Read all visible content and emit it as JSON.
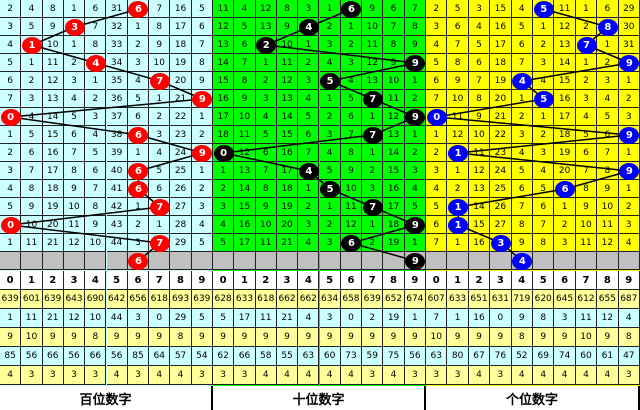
{
  "digits": [
    "0",
    "1",
    "2",
    "3",
    "4",
    "5",
    "6",
    "7",
    "8",
    "9"
  ],
  "panels": [
    {
      "title": "百位数字",
      "bg": "#ccffff",
      "ball_color": "#ff0000",
      "ball_text": "#ffffff",
      "draws": [
        6,
        3,
        1,
        4,
        7,
        9,
        0,
        6,
        9,
        6,
        6,
        7,
        0,
        7
      ],
      "next": 6,
      "rows": [
        [
          "2",
          "4",
          "8",
          "1",
          "6",
          "31",
          "6",
          "7",
          "16",
          "5"
        ],
        [
          "3",
          "5",
          "9",
          "3",
          "7",
          "32",
          "1",
          "8",
          "17",
          "6"
        ],
        [
          "4",
          "1",
          "10",
          "1",
          "8",
          "33",
          "2",
          "9",
          "18",
          "7"
        ],
        [
          "5",
          "1",
          "11",
          "2",
          "4",
          "34",
          "3",
          "10",
          "19",
          "8"
        ],
        [
          "6",
          "2",
          "12",
          "3",
          "1",
          "35",
          "4",
          "7",
          "20",
          "9"
        ],
        [
          "7",
          "3",
          "13",
          "4",
          "2",
          "36",
          "5",
          "1",
          "21",
          "9"
        ],
        [
          "0",
          "4",
          "14",
          "5",
          "3",
          "37",
          "6",
          "2",
          "22",
          "1"
        ],
        [
          "1",
          "5",
          "15",
          "6",
          "4",
          "38",
          "6",
          "3",
          "23",
          "2"
        ],
        [
          "2",
          "6",
          "16",
          "7",
          "5",
          "39",
          "1",
          "4",
          "24",
          "9"
        ],
        [
          "3",
          "7",
          "17",
          "8",
          "6",
          "40",
          "6",
          "5",
          "25",
          "1"
        ],
        [
          "4",
          "8",
          "18",
          "9",
          "7",
          "41",
          "6",
          "6",
          "26",
          "2"
        ],
        [
          "5",
          "9",
          "19",
          "10",
          "8",
          "42",
          "1",
          "7",
          "27",
          "3"
        ],
        [
          "0",
          "10",
          "20",
          "11",
          "9",
          "43",
          "2",
          "1",
          "28",
          "4"
        ],
        [
          "1",
          "11",
          "21",
          "12",
          "10",
          "44",
          "3",
          "7",
          "29",
          "5"
        ]
      ],
      "stats": [
        [
          "639",
          "601",
          "639",
          "643",
          "690",
          "642",
          "656",
          "618",
          "693",
          "639"
        ],
        [
          "1",
          "11",
          "21",
          "12",
          "10",
          "44",
          "3",
          "0",
          "29",
          "5"
        ],
        [
          "9",
          "10",
          "9",
          "9",
          "8",
          "9",
          "9",
          "9",
          "8",
          "9"
        ],
        [
          "85",
          "56",
          "66",
          "56",
          "66",
          "56",
          "85",
          "64",
          "57",
          "54"
        ],
        [
          "4",
          "3",
          "3",
          "3",
          "3",
          "4",
          "3",
          "4",
          "4",
          "3"
        ]
      ]
    },
    {
      "title": "十位数字",
      "bg": "#00ff00",
      "ball_color": "#000000",
      "ball_text": "#ffffff",
      "draws": [
        6,
        4,
        2,
        9,
        5,
        7,
        9,
        7,
        0,
        4,
        5,
        7,
        9,
        6
      ],
      "next": 9,
      "rows": [
        [
          "11",
          "4",
          "12",
          "8",
          "3",
          "1",
          "6",
          "9",
          "6",
          "7"
        ],
        [
          "12",
          "5",
          "13",
          "9",
          "4",
          "2",
          "1",
          "10",
          "7",
          "8"
        ],
        [
          "13",
          "6",
          "2",
          "10",
          "1",
          "3",
          "2",
          "11",
          "8",
          "9"
        ],
        [
          "14",
          "7",
          "1",
          "11",
          "2",
          "4",
          "3",
          "12",
          "9",
          "9"
        ],
        [
          "15",
          "8",
          "2",
          "12",
          "3",
          "5",
          "4",
          "13",
          "10",
          "1"
        ],
        [
          "16",
          "9",
          "3",
          "13",
          "4",
          "1",
          "5",
          "7",
          "11",
          "2"
        ],
        [
          "17",
          "10",
          "4",
          "14",
          "5",
          "2",
          "6",
          "1",
          "12",
          "9"
        ],
        [
          "18",
          "11",
          "5",
          "15",
          "6",
          "3",
          "7",
          "7",
          "13",
          "1"
        ],
        [
          "0",
          "12",
          "6",
          "16",
          "7",
          "4",
          "8",
          "1",
          "14",
          "2"
        ],
        [
          "1",
          "13",
          "7",
          "17",
          "4",
          "5",
          "9",
          "2",
          "15",
          "3"
        ],
        [
          "2",
          "14",
          "8",
          "18",
          "1",
          "5",
          "10",
          "3",
          "16",
          "4"
        ],
        [
          "3",
          "15",
          "9",
          "19",
          "2",
          "1",
          "11",
          "7",
          "17",
          "5"
        ],
        [
          "4",
          "16",
          "10",
          "20",
          "3",
          "2",
          "12",
          "1",
          "18",
          "9"
        ],
        [
          "5",
          "17",
          "11",
          "21",
          "4",
          "3",
          "6",
          "2",
          "19",
          "1"
        ]
      ],
      "stats": [
        [
          "628",
          "633",
          "618",
          "662",
          "662",
          "634",
          "658",
          "639",
          "652",
          "674"
        ],
        [
          "5",
          "17",
          "11",
          "21",
          "4",
          "3",
          "0",
          "2",
          "19",
          "1"
        ],
        [
          "9",
          "9",
          "9",
          "9",
          "9",
          "9",
          "9",
          "9",
          "9",
          "9"
        ],
        [
          "62",
          "66",
          "58",
          "55",
          "63",
          "60",
          "73",
          "59",
          "75",
          "56"
        ],
        [
          "3",
          "3",
          "4",
          "4",
          "4",
          "4",
          "4",
          "3",
          "4",
          "3"
        ]
      ]
    },
    {
      "title": "个位数字",
      "bg": "#ffff00",
      "ball_color": "#0000ff",
      "ball_text": "#ffffff",
      "draws": [
        5,
        8,
        7,
        9,
        4,
        5,
        0,
        9,
        1,
        9,
        6,
        1,
        1,
        3
      ],
      "next": 4,
      "rows": [
        [
          "2",
          "5",
          "3",
          "15",
          "4",
          "5",
          "11",
          "1",
          "6",
          "29"
        ],
        [
          "3",
          "6",
          "4",
          "16",
          "5",
          "1",
          "12",
          "2",
          "8",
          "30"
        ],
        [
          "4",
          "7",
          "5",
          "17",
          "6",
          "2",
          "13",
          "7",
          "1",
          "31"
        ],
        [
          "5",
          "8",
          "6",
          "18",
          "7",
          "3",
          "14",
          "1",
          "2",
          "9"
        ],
        [
          "6",
          "9",
          "7",
          "19",
          "4",
          "4",
          "15",
          "2",
          "3",
          "1"
        ],
        [
          "7",
          "10",
          "8",
          "20",
          "1",
          "5",
          "16",
          "3",
          "4",
          "2"
        ],
        [
          "0",
          "11",
          "9",
          "21",
          "2",
          "1",
          "17",
          "4",
          "5",
          "3"
        ],
        [
          "1",
          "12",
          "10",
          "22",
          "3",
          "2",
          "18",
          "5",
          "6",
          "9"
        ],
        [
          "2",
          "1",
          "11",
          "23",
          "4",
          "3",
          "19",
          "6",
          "7",
          "1"
        ],
        [
          "3",
          "1",
          "12",
          "24",
          "5",
          "4",
          "20",
          "7",
          "8",
          "9"
        ],
        [
          "4",
          "2",
          "13",
          "25",
          "6",
          "5",
          "6",
          "8",
          "9",
          "1"
        ],
        [
          "5",
          "1",
          "14",
          "26",
          "7",
          "6",
          "1",
          "9",
          "10",
          "2"
        ],
        [
          "6",
          "1",
          "15",
          "27",
          "8",
          "7",
          "2",
          "10",
          "11",
          "3"
        ],
        [
          "7",
          "1",
          "16",
          "3",
          "9",
          "8",
          "3",
          "11",
          "12",
          "4"
        ]
      ],
      "stats": [
        [
          "607",
          "633",
          "651",
          "631",
          "719",
          "620",
          "645",
          "612",
          "655",
          "687"
        ],
        [
          "7",
          "1",
          "16",
          "0",
          "9",
          "8",
          "3",
          "11",
          "12",
          "4"
        ],
        [
          "10",
          "9",
          "9",
          "9",
          "8",
          "9",
          "9",
          "10",
          "9",
          "8"
        ],
        [
          "63",
          "80",
          "67",
          "76",
          "52",
          "69",
          "74",
          "60",
          "61",
          "47"
        ],
        [
          "3",
          "3",
          "4",
          "3",
          "4",
          "4",
          "4",
          "4",
          "4",
          "3"
        ]
      ]
    }
  ]
}
